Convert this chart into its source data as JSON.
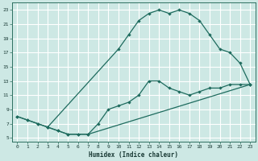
{
  "xlabel": "Humidex (Indice chaleur)",
  "bg_color": "#cde8e4",
  "line_color": "#1e6b5e",
  "grid_minor_color": "#b8d8d4",
  "grid_major_color": "#ffffff",
  "xlim": [
    -0.5,
    23.5
  ],
  "ylim": [
    4.5,
    24
  ],
  "xticks": [
    0,
    1,
    2,
    3,
    4,
    5,
    6,
    7,
    8,
    9,
    10,
    11,
    12,
    13,
    14,
    15,
    16,
    17,
    18,
    19,
    20,
    21,
    22,
    23
  ],
  "yticks": [
    5,
    7,
    9,
    11,
    13,
    15,
    17,
    19,
    21,
    23
  ],
  "curve1_x": [
    0,
    1,
    2,
    3,
    10,
    11,
    12,
    13,
    14,
    15,
    16,
    17,
    18,
    19,
    20,
    21,
    22,
    23
  ],
  "curve1_y": [
    8,
    7.5,
    7.0,
    6.5,
    17.5,
    19.5,
    21.5,
    22.5,
    23.0,
    22.5,
    23.0,
    22.5,
    21.5,
    19.5,
    17.5,
    17.0,
    15.5,
    12.5
  ],
  "curve2_x": [
    0,
    1,
    2,
    3,
    4,
    5,
    6,
    7,
    23
  ],
  "curve2_y": [
    8.0,
    7.5,
    7.0,
    6.5,
    6.0,
    5.5,
    5.5,
    5.5,
    12.5
  ],
  "curve3_x": [
    3,
    4,
    5,
    6,
    7,
    8,
    9,
    10,
    11,
    12,
    13,
    14,
    15,
    16,
    17,
    18,
    19,
    20,
    21,
    22,
    23
  ],
  "curve3_y": [
    6.5,
    6.0,
    5.5,
    5.5,
    5.5,
    7.0,
    9.0,
    9.5,
    10.0,
    11.0,
    13.0,
    13.0,
    12.0,
    11.5,
    11.0,
    11.5,
    12.0,
    12.0,
    12.5,
    12.5,
    12.5
  ]
}
